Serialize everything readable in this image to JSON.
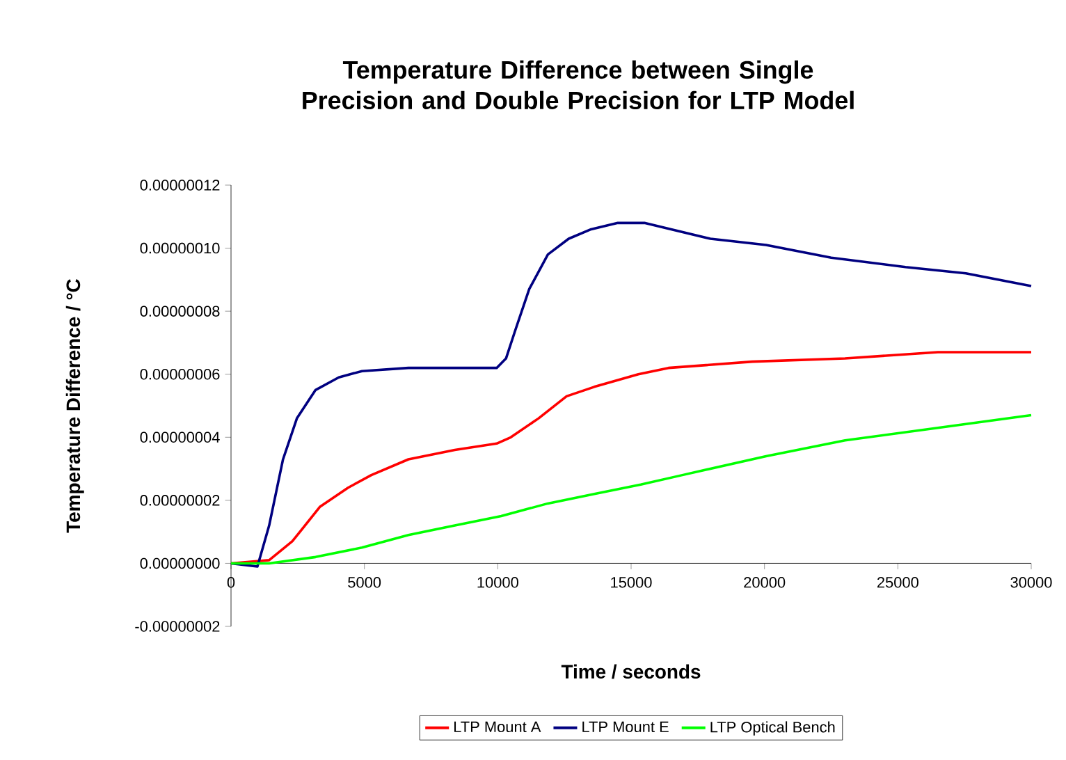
{
  "chart_data": {
    "type": "line",
    "title": "Temperature Difference between Single Precision and Double Precision for LTP Model",
    "xlabel": "Time / seconds",
    "ylabel": "Temperature Difference / °C",
    "xlim": [
      0,
      30000
    ],
    "xticks": [
      0,
      5000,
      10000,
      15000,
      20000,
      25000,
      30000
    ],
    "ylim": [
      -2e-08,
      1.2e-07
    ],
    "yticks": [
      {
        "value": -2e-08,
        "label": "-0.00000002"
      },
      {
        "value": 0,
        "label": "0.00000000"
      },
      {
        "value": 2e-08,
        "label": "0.00000002"
      },
      {
        "value": 4e-08,
        "label": "0.00000004"
      },
      {
        "value": 6e-08,
        "label": "0.00000006"
      },
      {
        "value": 8e-08,
        "label": "0.00000008"
      },
      {
        "value": 1e-07,
        "label": "0.00000010"
      },
      {
        "value": 1.2e-07,
        "label": "0.00000012"
      }
    ],
    "legend": "bottom",
    "series": [
      {
        "name": "LTP Mount A",
        "color": "#ff0000",
        "x": [
          0,
          1430,
          2300,
          3340,
          4390,
          5260,
          6650,
          8390,
          9960,
          10490,
          11530,
          12580,
          13620,
          15270,
          16400,
          19540,
          23020,
          26500,
          30000
        ],
        "values": [
          0,
          1e-09,
          7e-09,
          1.8e-08,
          2.4e-08,
          2.8e-08,
          3.3e-08,
          3.6e-08,
          3.8e-08,
          4e-08,
          4.6e-08,
          5.3e-08,
          5.6e-08,
          6e-08,
          6.2e-08,
          6.4e-08,
          6.5e-08,
          6.7e-08,
          6.7e-08
        ]
      },
      {
        "name": "LTP Mount E",
        "color": "#000080",
        "x": [
          0,
          990,
          1430,
          1950,
          2470,
          3170,
          4040,
          4910,
          6650,
          8390,
          9960,
          10310,
          10660,
          11180,
          11880,
          12660,
          13500,
          14500,
          15500,
          16500,
          17970,
          20060,
          22500,
          25290,
          27550,
          30000
        ],
        "values": [
          0,
          -1e-09,
          1.2e-08,
          3.3e-08,
          4.6e-08,
          5.5e-08,
          5.9e-08,
          6.1e-08,
          6.2e-08,
          6.2e-08,
          6.2e-08,
          6.5e-08,
          7.4e-08,
          8.7e-08,
          9.8e-08,
          1.03e-07,
          1.06e-07,
          1.08e-07,
          1.08e-07,
          1.06e-07,
          1.03e-07,
          1.01e-07,
          9.7e-08,
          9.4e-08,
          9.2e-08,
          8.8e-08
        ]
      },
      {
        "name": "LTP Optical Bench",
        "color": "#00ff00",
        "x": [
          0,
          1430,
          3170,
          4910,
          6650,
          8390,
          10130,
          11880,
          13620,
          15360,
          16920,
          20060,
          23020,
          26500,
          30000
        ],
        "values": [
          0,
          0,
          2e-09,
          5e-09,
          9e-09,
          1.2e-08,
          1.5e-08,
          1.9e-08,
          2.2e-08,
          2.5e-08,
          2.8e-08,
          3.4e-08,
          3.9e-08,
          4.3e-08,
          4.7e-08
        ]
      }
    ]
  }
}
